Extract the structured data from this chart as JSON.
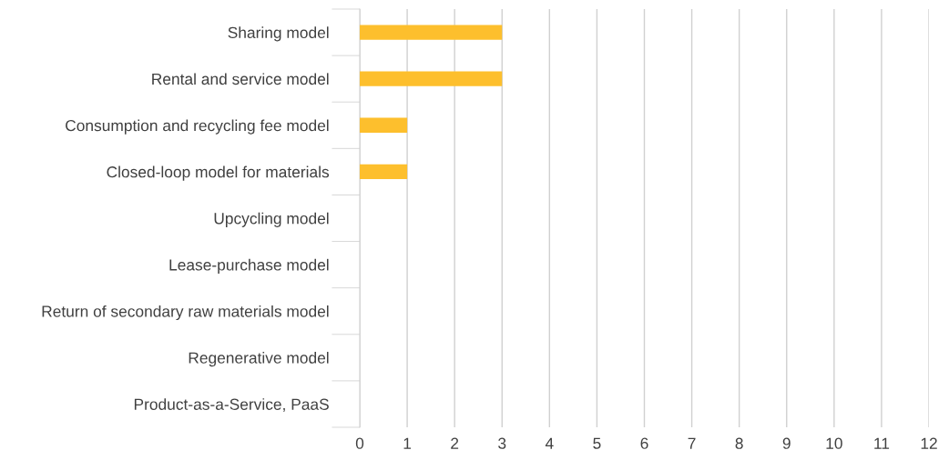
{
  "chart_data": {
    "type": "bar",
    "orientation": "horizontal",
    "categories": [
      "Sharing model",
      "Rental and service model",
      "Consumption and recycling fee model",
      "Closed-loop model for materials",
      "Upcycling model",
      "Lease-purchase model",
      "Return of secondary raw materials model",
      "Regenerative model",
      "Product-as-a-Service, PaaS"
    ],
    "values": [
      3,
      3,
      1,
      1,
      0,
      0,
      0,
      0,
      0
    ],
    "color": "#fdbf2d",
    "xlim": [
      0,
      12
    ],
    "xticks": [
      0,
      1,
      2,
      3,
      4,
      5,
      6,
      7,
      8,
      9,
      10,
      11,
      12
    ],
    "grid": "x",
    "legend": false
  }
}
